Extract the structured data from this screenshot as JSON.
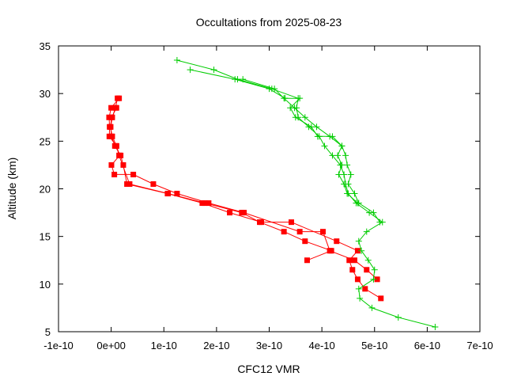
{
  "chart_data": {
    "type": "line",
    "title": "Occultations from 2025-08-23",
    "xlabel": "CFC12 VMR",
    "ylabel": "Altitude (km)",
    "xlim": [
      -1e-10,
      7e-10
    ],
    "ylim": [
      5,
      35
    ],
    "x_ticks": [
      "-1e-10",
      "0e+00",
      "1e-10",
      "2e-10",
      "3e-10",
      "4e-10",
      "5e-10",
      "6e-10",
      "7e-10"
    ],
    "y_ticks": [
      "5",
      "10",
      "15",
      "20",
      "25",
      "30",
      "35"
    ],
    "grid": false,
    "legend": "none",
    "series": [
      {
        "color": "#ff0000",
        "marker": "square",
        "points": [
          [
            1.2e-11,
            29.5
          ],
          [
            8e-12,
            28.5
          ],
          [
            2e-12,
            27.5
          ],
          [
            -1e-12,
            26.5
          ],
          [
            5e-13,
            25.5
          ],
          [
            7e-12,
            24.5
          ],
          [
            1.8e-11,
            23.5
          ],
          [
            2.3e-11,
            22.5
          ],
          [
            3e-11,
            20.5
          ],
          [
            1.07e-10,
            19.5
          ],
          [
            1.73e-10,
            18.5
          ],
          [
            2.25e-10,
            17.5
          ],
          [
            2.85e-10,
            16.5
          ],
          [
            3.42e-10,
            16.5
          ],
          [
            4.28e-10,
            14.5
          ],
          [
            4.68e-10,
            13.5
          ],
          [
            4.52e-10,
            12.5
          ],
          [
            4.58e-10,
            11.5
          ],
          [
            4.68e-10,
            10.5
          ],
          [
            4.82e-10,
            9.5
          ],
          [
            5.12e-10,
            8.5
          ]
        ]
      },
      {
        "color": "#ff0000",
        "marker": "square",
        "points": [
          [
            1e-11,
            28.5
          ],
          [
            1e-12,
            27.5
          ],
          [
            -1.5e-12,
            26.5
          ],
          [
            2e-12,
            25.5
          ],
          [
            1e-11,
            24.5
          ],
          [
            1.6e-11,
            23.5
          ],
          [
            5e-13,
            22.5
          ],
          [
            6e-12,
            21.5
          ],
          [
            4.2e-11,
            21.5
          ],
          [
            8e-11,
            20.5
          ],
          [
            1.25e-10,
            19.5
          ],
          [
            1.85e-10,
            18.5
          ],
          [
            2.52e-10,
            17.5
          ],
          [
            3.58e-10,
            15.5
          ],
          [
            4.02e-10,
            15.5
          ],
          [
            4.15e-10,
            13.5
          ],
          [
            4.62e-10,
            12.5
          ],
          [
            4.85e-10,
            11.5
          ],
          [
            5.05e-10,
            10.5
          ]
        ]
      },
      {
        "color": "#ff0000",
        "marker": "square",
        "points": [
          [
            1.5e-11,
            29.5
          ],
          [
            0.0,
            28.5
          ],
          [
            -4e-12,
            27.5
          ],
          [
            -3e-12,
            26.5
          ],
          [
            -3.5e-12,
            25.5
          ],
          [
            1e-11,
            24.5
          ],
          [
            1.5e-11,
            23.5
          ],
          [
            3.5e-11,
            20.5
          ],
          [
            1.08e-10,
            19.5
          ],
          [
            1.78e-10,
            18.5
          ],
          [
            2.48e-10,
            17.5
          ],
          [
            2.82e-10,
            16.5
          ],
          [
            3.28e-10,
            15.5
          ],
          [
            3.68e-10,
            14.5
          ],
          [
            4.18e-10,
            13.5
          ],
          [
            3.72e-10,
            12.5
          ]
        ]
      },
      {
        "color": "#00cc00",
        "marker": "plus",
        "points": [
          [
            1.25e-10,
            33.5
          ],
          [
            1.95e-10,
            32.5
          ],
          [
            2.4e-10,
            31.5
          ],
          [
            3.05e-10,
            30.5
          ],
          [
            3.55e-10,
            29.5
          ],
          [
            3.52e-10,
            28.5
          ],
          [
            3.55e-10,
            27.5
          ],
          [
            3.75e-10,
            26.5
          ],
          [
            3.95e-10,
            25.5
          ],
          [
            4.05e-10,
            24.5
          ],
          [
            4.2e-10,
            23.5
          ],
          [
            4.35e-10,
            22.5
          ],
          [
            4.42e-10,
            21.5
          ],
          [
            4.45e-10,
            20.5
          ],
          [
            4.5e-10,
            19.5
          ],
          [
            4.65e-10,
            18.5
          ],
          [
            4.9e-10,
            17.5
          ],
          [
            5.15e-10,
            16.5
          ],
          [
            4.85e-10,
            15.5
          ],
          [
            4.7e-10,
            14.5
          ],
          [
            4.75e-10,
            13.5
          ],
          [
            4.88e-10,
            12.5
          ],
          [
            5e-10,
            11.5
          ],
          [
            4.98e-10,
            10.5
          ],
          [
            4.7e-10,
            9.5
          ],
          [
            4.72e-10,
            8.5
          ],
          [
            4.95e-10,
            7.5
          ],
          [
            5.45e-10,
            6.5
          ],
          [
            6.15e-10,
            5.5
          ]
        ]
      },
      {
        "color": "#00cc00",
        "marker": "plus",
        "points": [
          [
            1.5e-10,
            32.5
          ],
          [
            2.35e-10,
            31.5
          ],
          [
            3e-10,
            30.5
          ],
          [
            3.3e-10,
            29.5
          ],
          [
            3.58e-10,
            29.5
          ],
          [
            3.4e-10,
            28.5
          ],
          [
            3.5e-10,
            27.5
          ],
          [
            3.8e-10,
            26.5
          ],
          [
            3.92e-10,
            25.5
          ],
          [
            4.2e-10,
            25.5
          ],
          [
            4.38e-10,
            24.5
          ],
          [
            4.45e-10,
            23.5
          ],
          [
            4.48e-10,
            22.5
          ],
          [
            4.55e-10,
            21.5
          ],
          [
            4.5e-10,
            20.5
          ],
          [
            4.62e-10,
            19.5
          ],
          [
            4.7e-10,
            18.5
          ],
          [
            4.98e-10,
            17.5
          ],
          [
            5.1e-10,
            16.5
          ]
        ]
      },
      {
        "color": "#00cc00",
        "marker": "plus",
        "points": [
          [
            2.5e-10,
            31.5
          ],
          [
            3.1e-10,
            30.5
          ],
          [
            3.28e-10,
            29.5
          ],
          [
            3.48e-10,
            28.5
          ],
          [
            3.68e-10,
            27.5
          ],
          [
            3.9e-10,
            26.5
          ],
          [
            4.15e-10,
            25.5
          ],
          [
            4.38e-10,
            24.5
          ],
          [
            4.3e-10,
            23.5
          ],
          [
            4.38e-10,
            22.5
          ],
          [
            4.32e-10,
            21.5
          ],
          [
            4.42e-10,
            20.5
          ],
          [
            4.48e-10,
            19.5
          ],
          [
            4.68e-10,
            18.5
          ]
        ]
      }
    ]
  }
}
